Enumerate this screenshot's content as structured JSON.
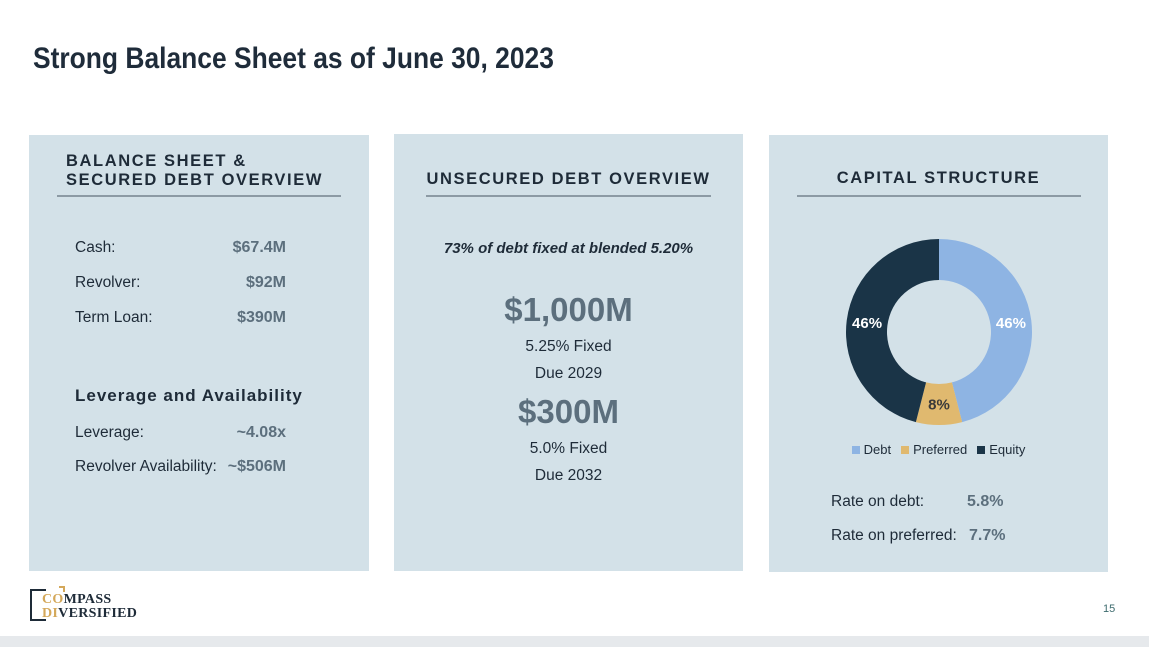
{
  "title": "Strong Balance Sheet as of June 30, 2023",
  "left_panel": {
    "heading_line1": "BALANCE SHEET &",
    "heading_line2": "SECURED DEBT OVERVIEW",
    "rows": [
      {
        "label": "Cash:",
        "value": "$67.4M"
      },
      {
        "label": "Revolver:",
        "value": "$92M"
      },
      {
        "label": "Term Loan:",
        "value": "$390M"
      }
    ],
    "subheading": "Leverage and Availability",
    "rows2": [
      {
        "label": "Leverage:",
        "value": "~4.08x"
      },
      {
        "label": "Revolver Availability:",
        "value": "~$506M"
      }
    ]
  },
  "middle_panel": {
    "heading": "UNSECURED DEBT OVERVIEW",
    "note": "73% of debt fixed at blended 5.20%",
    "notes": [
      {
        "amount": "$1,000M",
        "rate": "5.25% Fixed",
        "due": "Due 2029"
      },
      {
        "amount": "$300M",
        "rate": "5.0% Fixed",
        "due": "Due 2032"
      }
    ]
  },
  "right_panel": {
    "heading": "CAPITAL STRUCTURE",
    "rates": [
      {
        "label": "Rate on debt:",
        "value": "5.8%"
      },
      {
        "label": "Rate on preferred:",
        "value": "7.7%"
      }
    ]
  },
  "chart_data": {
    "type": "pie",
    "donut": true,
    "legend_position": "bottom",
    "series": [
      {
        "name": "Debt",
        "value": 46,
        "label": "46%",
        "color": "#8eb4e3"
      },
      {
        "name": "Preferred",
        "value": 8,
        "label": "8%",
        "color": "#e0b96f"
      },
      {
        "name": "Equity",
        "value": 46,
        "label": "46%",
        "color": "#1a3447"
      }
    ]
  },
  "logo": {
    "line1": "COMPASS",
    "line2": "DIVERSIFIED",
    "accent": "#d4a85a"
  },
  "page_number": "15"
}
